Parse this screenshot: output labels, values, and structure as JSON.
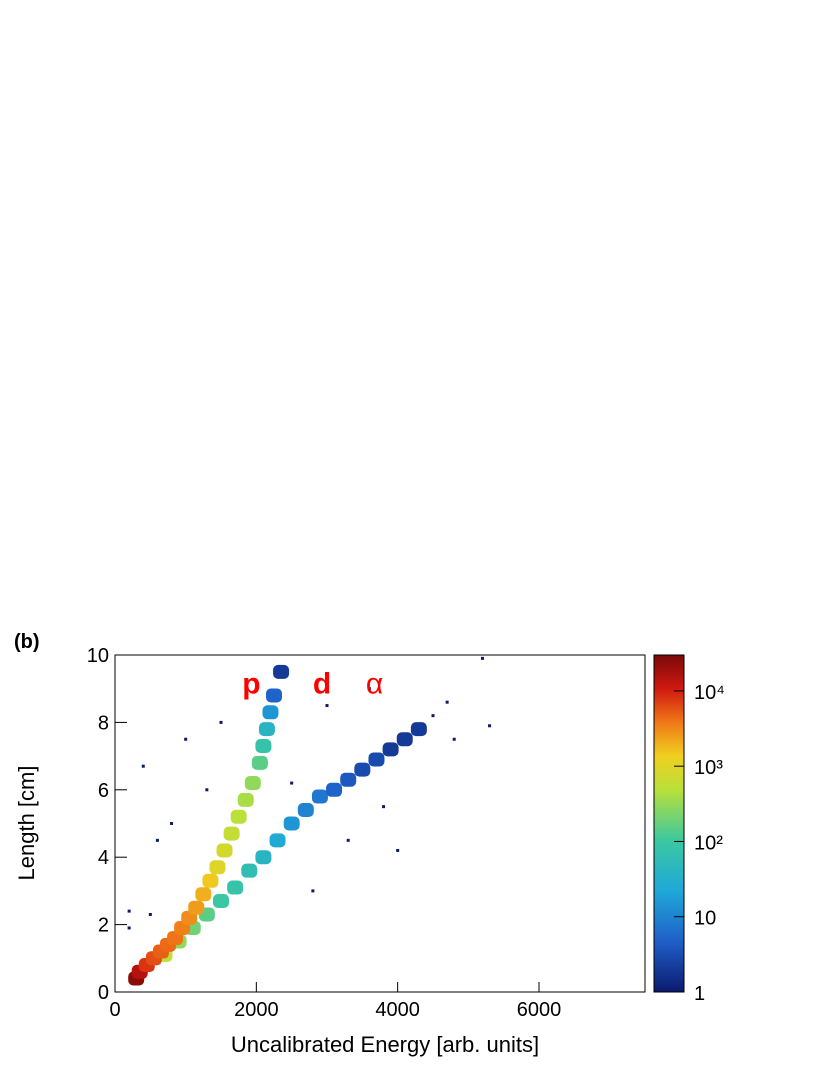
{
  "chart_data": {
    "type": "heatmap",
    "panel_label": "(b)",
    "x_label": "Uncalibrated Energy [arb. units]",
    "y_label": "Length [cm]",
    "annotations": [
      {
        "text": "p",
        "x": 1800,
        "y": 9.1,
        "color": "#ff0000",
        "bold": true
      },
      {
        "text": "d",
        "x": 2800,
        "y": 9.1,
        "color": "#ff0000",
        "bold": true
      },
      {
        "text": "α",
        "x": 3550,
        "y": 9.1,
        "color": "#ff0000",
        "bold": false
      }
    ],
    "xlim": [
      0,
      7500
    ],
    "xticks": [
      0,
      2000,
      4000,
      6000
    ],
    "ylim": [
      0,
      10
    ],
    "yticks": [
      0,
      2,
      4,
      6,
      8,
      10
    ],
    "zlim": [
      1,
      30000
    ],
    "zlog": true,
    "zticks": [
      1,
      10,
      {
        "value": 100,
        "label": "10²"
      },
      {
        "value": 1000,
        "label": "10³"
      },
      {
        "value": 10000,
        "label": "10⁴"
      }
    ],
    "x": [
      500,
      600,
      800,
      400,
      1000,
      1500,
      2500,
      3000,
      3600,
      4000,
      4800,
      5200,
      5300,
      2800,
      3300,
      3800,
      1300,
      200,
      200,
      700,
      900,
      1100,
      1300,
      1500,
      1700,
      1900,
      2100,
      2300,
      2500,
      2700,
      2900,
      3100,
      3300,
      3500,
      3700,
      3900,
      4100,
      4300,
      4500,
      4700,
      300,
      350,
      450,
      550,
      650,
      750,
      850,
      950,
      1050,
      1150,
      1250,
      1350,
      1450,
      1550,
      1650,
      1750,
      1850,
      1950,
      2050,
      2100,
      2150,
      2200,
      2250,
      2350
    ],
    "y": [
      2.3,
      4.5,
      5.0,
      6.7,
      7.5,
      8.0,
      6.2,
      8.5,
      9.0,
      4.2,
      7.5,
      9.9,
      7.9,
      3.0,
      4.5,
      5.5,
      6.0,
      1.9,
      2.4,
      1.1,
      1.5,
      1.9,
      2.3,
      2.7,
      3.1,
      3.6,
      4.0,
      4.5,
      5.0,
      5.4,
      5.8,
      6.0,
      6.3,
      6.6,
      6.9,
      7.2,
      7.5,
      7.8,
      8.2,
      8.6,
      0.4,
      0.6,
      0.8,
      1.0,
      1.2,
      1.4,
      1.6,
      1.9,
      2.2,
      2.5,
      2.9,
      3.3,
      3.7,
      4.2,
      4.7,
      5.2,
      5.7,
      6.2,
      6.8,
      7.3,
      7.8,
      8.3,
      8.8,
      9.5
    ],
    "values": [
      1,
      1,
      1,
      1,
      1,
      1,
      1,
      1,
      1,
      1,
      1,
      1,
      1,
      1,
      1,
      1,
      1,
      1,
      1,
      500,
      300,
      200,
      150,
      100,
      80,
      60,
      40,
      25,
      15,
      10,
      8,
      5,
      4,
      3,
      3,
      2,
      2,
      2,
      1,
      1,
      25000,
      15000,
      8000,
      6000,
      5000,
      4500,
      4000,
      3500,
      3000,
      2500,
      2000,
      1500,
      1000,
      800,
      600,
      500,
      400,
      300,
      150,
      80,
      40,
      15,
      5,
      2
    ]
  }
}
